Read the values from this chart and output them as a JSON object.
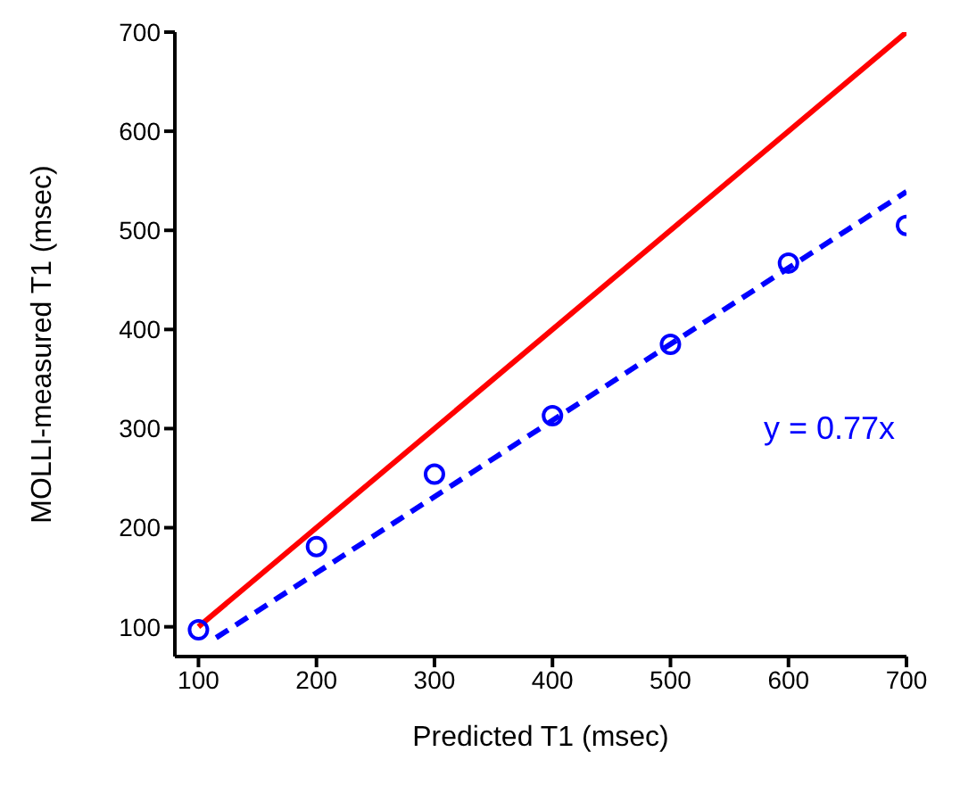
{
  "chart_data": {
    "type": "scatter",
    "xlabel": "Predicted T1 (msec)",
    "ylabel": "MOLLI-measured T1 (msec)",
    "xlim": [
      80,
      700
    ],
    "ylim": [
      70,
      700
    ],
    "xticks": [
      100,
      200,
      300,
      400,
      500,
      600,
      700
    ],
    "yticks": [
      100,
      200,
      300,
      400,
      500,
      600,
      700
    ],
    "grid": false,
    "legend": false,
    "series": [
      {
        "type": "line",
        "color": "#ff0000",
        "x": [
          100,
          700
        ],
        "values": [
          100,
          700
        ],
        "line_style": "solid",
        "marker": "none"
      },
      {
        "type": "line",
        "color": "#0000ff",
        "x": [
          115,
          700
        ],
        "values": [
          89,
          539
        ],
        "line_style": "dashed",
        "marker": "none"
      },
      {
        "color": "#0000ff",
        "x": [
          100,
          200,
          300,
          400,
          500,
          600,
          700
        ],
        "values": [
          97,
          181,
          254,
          313,
          385,
          467,
          505
        ],
        "marker": "circle"
      }
    ],
    "annotations": [
      "y = 0.77x"
    ]
  }
}
